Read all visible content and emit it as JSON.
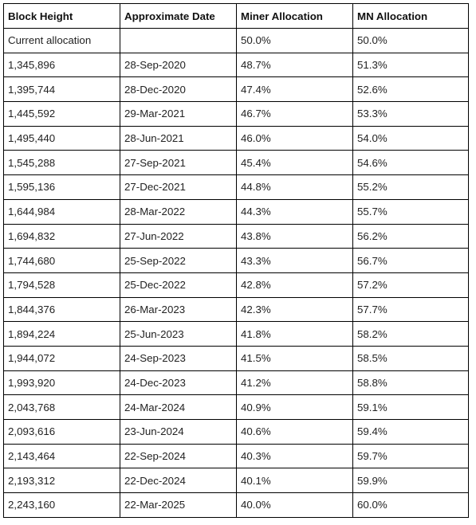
{
  "table": {
    "headers": [
      "Block Height",
      "Approximate Date",
      "Miner Allocation",
      "MN Allocation"
    ],
    "rows": [
      [
        "Current allocation",
        "",
        "50.0%",
        "50.0%"
      ],
      [
        "1,345,896",
        "28-Sep-2020",
        "48.7%",
        "51.3%"
      ],
      [
        "1,395,744",
        "28-Dec-2020",
        "47.4%",
        "52.6%"
      ],
      [
        "1,445,592",
        "29-Mar-2021",
        "46.7%",
        "53.3%"
      ],
      [
        "1,495,440",
        "28-Jun-2021",
        "46.0%",
        "54.0%"
      ],
      [
        "1,545,288",
        "27-Sep-2021",
        "45.4%",
        "54.6%"
      ],
      [
        "1,595,136",
        "27-Dec-2021",
        "44.8%",
        "55.2%"
      ],
      [
        "1,644,984",
        "28-Mar-2022",
        "44.3%",
        "55.7%"
      ],
      [
        "1,694,832",
        "27-Jun-2022",
        "43.8%",
        "56.2%"
      ],
      [
        "1,744,680",
        "25-Sep-2022",
        "43.3%",
        "56.7%"
      ],
      [
        "1,794,528",
        "25-Dec-2022",
        "42.8%",
        "57.2%"
      ],
      [
        "1,844,376",
        "26-Mar-2023",
        "42.3%",
        "57.7%"
      ],
      [
        "1,894,224",
        "25-Jun-2023",
        "41.8%",
        "58.2%"
      ],
      [
        "1,944,072",
        "24-Sep-2023",
        "41.5%",
        "58.5%"
      ],
      [
        "1,993,920",
        "24-Dec-2023",
        "41.2%",
        "58.8%"
      ],
      [
        "2,043,768",
        "24-Mar-2024",
        "40.9%",
        "59.1%"
      ],
      [
        "2,093,616",
        "23-Jun-2024",
        "40.6%",
        "59.4%"
      ],
      [
        "2,143,464",
        "22-Sep-2024",
        "40.3%",
        "59.7%"
      ],
      [
        "2,193,312",
        "22-Dec-2024",
        "40.1%",
        "59.9%"
      ],
      [
        "2,243,160",
        "22-Mar-2025",
        "40.0%",
        "60.0%"
      ]
    ]
  }
}
